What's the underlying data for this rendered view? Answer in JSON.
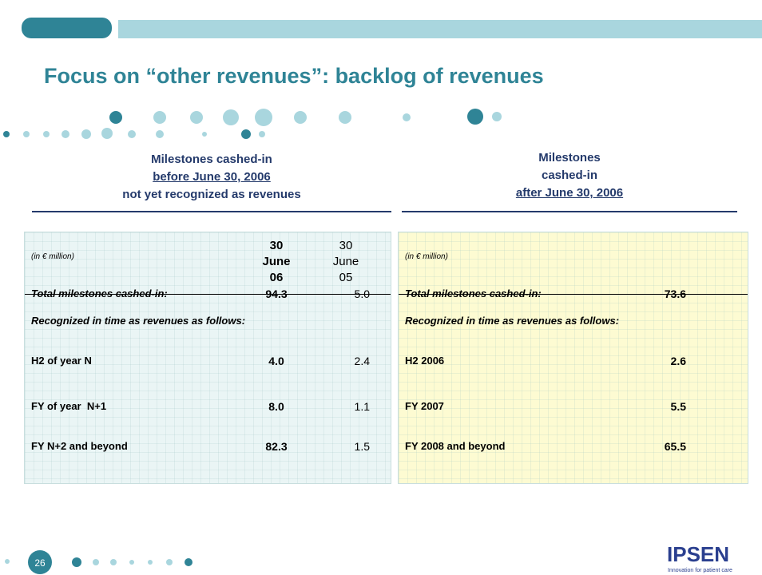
{
  "title": "Focus on “other revenues”: backlog of revenues",
  "left": {
    "heading": [
      "Milestones cashed-in",
      "before June 30, 2006",
      "not yet recognized as revenues"
    ],
    "table": {
      "unit": "(in € million)",
      "columns": [
        [
          "30",
          "June",
          "06"
        ],
        [
          "30",
          "June",
          "05"
        ]
      ],
      "rows": [
        [
          "Total milestones cashed-in:",
          "94.3",
          "5.0"
        ],
        [
          "Recognized in time as revenues as follows:"
        ],
        [
          "H2 of year N",
          "4.0",
          "2.4"
        ],
        [
          "FY of year  N+1",
          "8.0",
          "1.1"
        ],
        [
          "FY N+2 and beyond",
          "82.3",
          "1.5"
        ]
      ]
    }
  },
  "right": {
    "heading": [
      "Milestones",
      "cashed-in",
      "after June 30, 2006"
    ],
    "table": {
      "unit": "(in € million)",
      "rows": [
        [
          "Total milestones cashed-in:",
          "73.6"
        ],
        [
          "Recognized in time as revenues as follows:"
        ],
        [
          "H2 2006",
          "2.6"
        ],
        [
          "FY 2007",
          "5.5"
        ],
        [
          "FY 2008 and beyond",
          "65.5"
        ]
      ]
    }
  },
  "footer": {
    "page": "26",
    "logo": "IPSEN",
    "tagline": "Innovation for patient care"
  }
}
